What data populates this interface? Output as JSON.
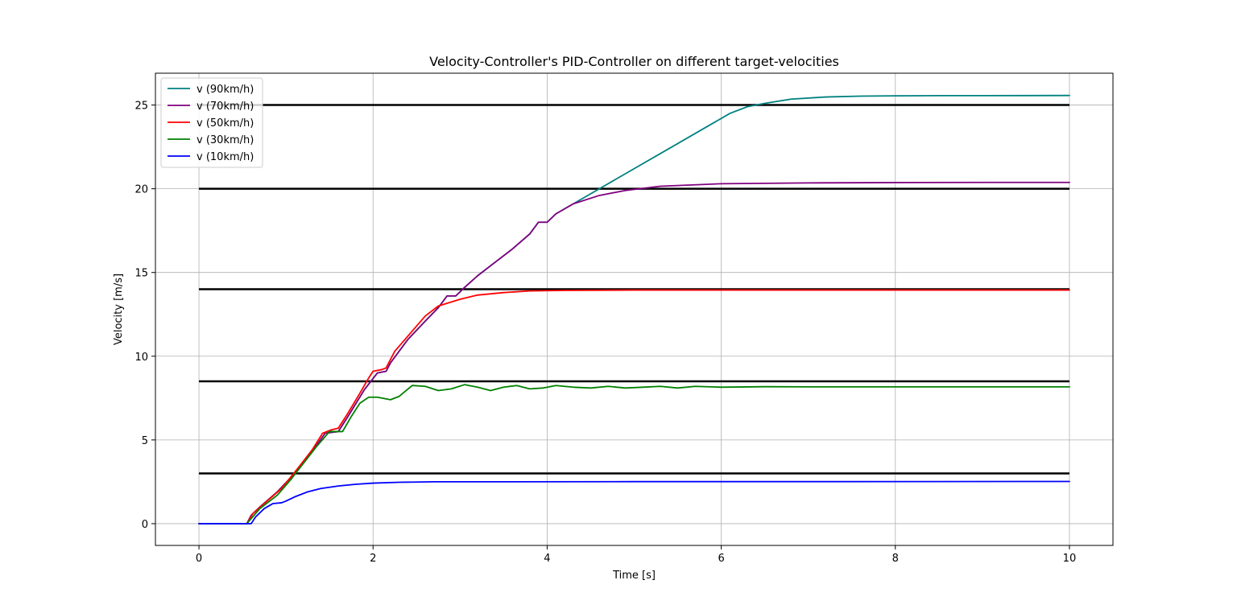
{
  "chart_data": {
    "type": "line",
    "title": "Velocity-Controller's PID-Controller on different target-velocities",
    "xlabel": "Time [s]",
    "ylabel": "Velocity [m/s]",
    "xlim": [
      -0.5,
      10.5
    ],
    "ylim": [
      -1.3,
      26.9
    ],
    "xticks": [
      0,
      2,
      4,
      6,
      8,
      10
    ],
    "yticks": [
      0,
      5,
      10,
      15,
      20,
      25
    ],
    "grid": true,
    "legend_position": "upper-left",
    "targets": {
      "color": "#000000",
      "values": [
        25,
        20,
        14,
        8.5,
        3
      ],
      "x_range": [
        0,
        10
      ]
    },
    "series": [
      {
        "name": "v (90km/h)",
        "color": "#008080",
        "points": [
          [
            0,
            0
          ],
          [
            0.55,
            0
          ],
          [
            0.6,
            0.5
          ],
          [
            0.7,
            1.0
          ],
          [
            0.9,
            1.9
          ],
          [
            1.1,
            3.0
          ],
          [
            1.3,
            4.3
          ],
          [
            1.45,
            5.4
          ],
          [
            1.6,
            5.5
          ],
          [
            1.7,
            6.3
          ],
          [
            1.9,
            8.0
          ],
          [
            2.05,
            9.0
          ],
          [
            2.15,
            9.1
          ],
          [
            2.2,
            9.6
          ],
          [
            2.4,
            11.0
          ],
          [
            2.6,
            12.1
          ],
          [
            2.75,
            12.9
          ],
          [
            2.85,
            13.6
          ],
          [
            2.95,
            13.6
          ],
          [
            3.05,
            14.1
          ],
          [
            3.2,
            14.8
          ],
          [
            3.4,
            15.6
          ],
          [
            3.6,
            16.4
          ],
          [
            3.8,
            17.3
          ],
          [
            3.9,
            18.0
          ],
          [
            4.0,
            18.0
          ],
          [
            4.1,
            18.5
          ],
          [
            4.3,
            19.1
          ],
          [
            4.6,
            20.0
          ],
          [
            5.0,
            21.2
          ],
          [
            5.4,
            22.4
          ],
          [
            5.8,
            23.6
          ],
          [
            6.1,
            24.5
          ],
          [
            6.3,
            24.9
          ],
          [
            6.5,
            25.1
          ],
          [
            6.8,
            25.35
          ],
          [
            7.2,
            25.48
          ],
          [
            7.6,
            25.53
          ],
          [
            8.0,
            25.55
          ],
          [
            8.5,
            25.56
          ],
          [
            9.0,
            25.56
          ],
          [
            10,
            25.57
          ]
        ]
      },
      {
        "name": "v (70km/h)",
        "color": "#800080",
        "points": [
          [
            0,
            0
          ],
          [
            0.55,
            0
          ],
          [
            0.6,
            0.5
          ],
          [
            0.7,
            1.0
          ],
          [
            0.9,
            1.9
          ],
          [
            1.1,
            3.0
          ],
          [
            1.3,
            4.3
          ],
          [
            1.45,
            5.4
          ],
          [
            1.6,
            5.5
          ],
          [
            1.7,
            6.3
          ],
          [
            1.9,
            8.0
          ],
          [
            2.05,
            9.0
          ],
          [
            2.15,
            9.1
          ],
          [
            2.2,
            9.6
          ],
          [
            2.4,
            11.0
          ],
          [
            2.6,
            12.1
          ],
          [
            2.75,
            12.9
          ],
          [
            2.85,
            13.6
          ],
          [
            2.95,
            13.6
          ],
          [
            3.05,
            14.1
          ],
          [
            3.2,
            14.8
          ],
          [
            3.4,
            15.6
          ],
          [
            3.6,
            16.4
          ],
          [
            3.8,
            17.3
          ],
          [
            3.9,
            18.0
          ],
          [
            4.0,
            18.0
          ],
          [
            4.1,
            18.5
          ],
          [
            4.3,
            19.1
          ],
          [
            4.6,
            19.6
          ],
          [
            4.9,
            19.9
          ],
          [
            5.3,
            20.15
          ],
          [
            6.0,
            20.3
          ],
          [
            7.0,
            20.35
          ],
          [
            8.0,
            20.37
          ],
          [
            9.0,
            20.38
          ],
          [
            10,
            20.38
          ]
        ]
      },
      {
        "name": "v (50km/h)",
        "color": "#ff0000",
        "points": [
          [
            0,
            0
          ],
          [
            0.55,
            0
          ],
          [
            0.62,
            0.6
          ],
          [
            0.75,
            1.2
          ],
          [
            0.95,
            2.1
          ],
          [
            1.15,
            3.4
          ],
          [
            1.3,
            4.4
          ],
          [
            1.42,
            5.4
          ],
          [
            1.52,
            5.6
          ],
          [
            1.6,
            5.7
          ],
          [
            1.7,
            6.5
          ],
          [
            1.85,
            7.8
          ],
          [
            1.95,
            8.7
          ],
          [
            2.0,
            9.1
          ],
          [
            2.1,
            9.2
          ],
          [
            2.15,
            9.3
          ],
          [
            2.25,
            10.3
          ],
          [
            2.45,
            11.5
          ],
          [
            2.6,
            12.4
          ],
          [
            2.75,
            13.0
          ],
          [
            3.0,
            13.4
          ],
          [
            3.2,
            13.65
          ],
          [
            3.5,
            13.8
          ],
          [
            3.8,
            13.9
          ],
          [
            4.2,
            13.93
          ],
          [
            5.0,
            13.95
          ],
          [
            6.0,
            13.95
          ],
          [
            8.0,
            13.95
          ],
          [
            10,
            13.95
          ]
        ]
      },
      {
        "name": "v (30km/h)",
        "color": "#008000",
        "points": [
          [
            0,
            0
          ],
          [
            0.55,
            0
          ],
          [
            0.6,
            0.3
          ],
          [
            0.7,
            0.9
          ],
          [
            0.9,
            1.7
          ],
          [
            1.05,
            2.6
          ],
          [
            1.2,
            3.6
          ],
          [
            1.35,
            4.6
          ],
          [
            1.5,
            5.5
          ],
          [
            1.65,
            5.5
          ],
          [
            1.75,
            6.4
          ],
          [
            1.85,
            7.2
          ],
          [
            1.95,
            7.55
          ],
          [
            2.05,
            7.55
          ],
          [
            2.2,
            7.4
          ],
          [
            2.3,
            7.6
          ],
          [
            2.45,
            8.25
          ],
          [
            2.6,
            8.2
          ],
          [
            2.75,
            7.95
          ],
          [
            2.9,
            8.05
          ],
          [
            3.05,
            8.3
          ],
          [
            3.2,
            8.15
          ],
          [
            3.35,
            7.95
          ],
          [
            3.5,
            8.15
          ],
          [
            3.65,
            8.25
          ],
          [
            3.8,
            8.05
          ],
          [
            3.95,
            8.1
          ],
          [
            4.1,
            8.25
          ],
          [
            4.3,
            8.15
          ],
          [
            4.5,
            8.1
          ],
          [
            4.7,
            8.2
          ],
          [
            4.9,
            8.1
          ],
          [
            5.1,
            8.15
          ],
          [
            5.3,
            8.2
          ],
          [
            5.5,
            8.1
          ],
          [
            5.7,
            8.2
          ],
          [
            6.0,
            8.15
          ],
          [
            6.5,
            8.18
          ],
          [
            7.0,
            8.17
          ],
          [
            8.0,
            8.17
          ],
          [
            9.0,
            8.17
          ],
          [
            10,
            8.17
          ]
        ]
      },
      {
        "name": "v (10km/h)",
        "color": "#0000ff",
        "points": [
          [
            0,
            0
          ],
          [
            0.6,
            0
          ],
          [
            0.65,
            0.4
          ],
          [
            0.75,
            0.9
          ],
          [
            0.85,
            1.2
          ],
          [
            0.95,
            1.25
          ],
          [
            1.0,
            1.35
          ],
          [
            1.1,
            1.6
          ],
          [
            1.25,
            1.9
          ],
          [
            1.4,
            2.1
          ],
          [
            1.6,
            2.25
          ],
          [
            1.8,
            2.35
          ],
          [
            2.0,
            2.42
          ],
          [
            2.3,
            2.47
          ],
          [
            2.7,
            2.5
          ],
          [
            3.5,
            2.5
          ],
          [
            5.0,
            2.51
          ],
          [
            7.0,
            2.51
          ],
          [
            10,
            2.52
          ]
        ]
      }
    ]
  }
}
